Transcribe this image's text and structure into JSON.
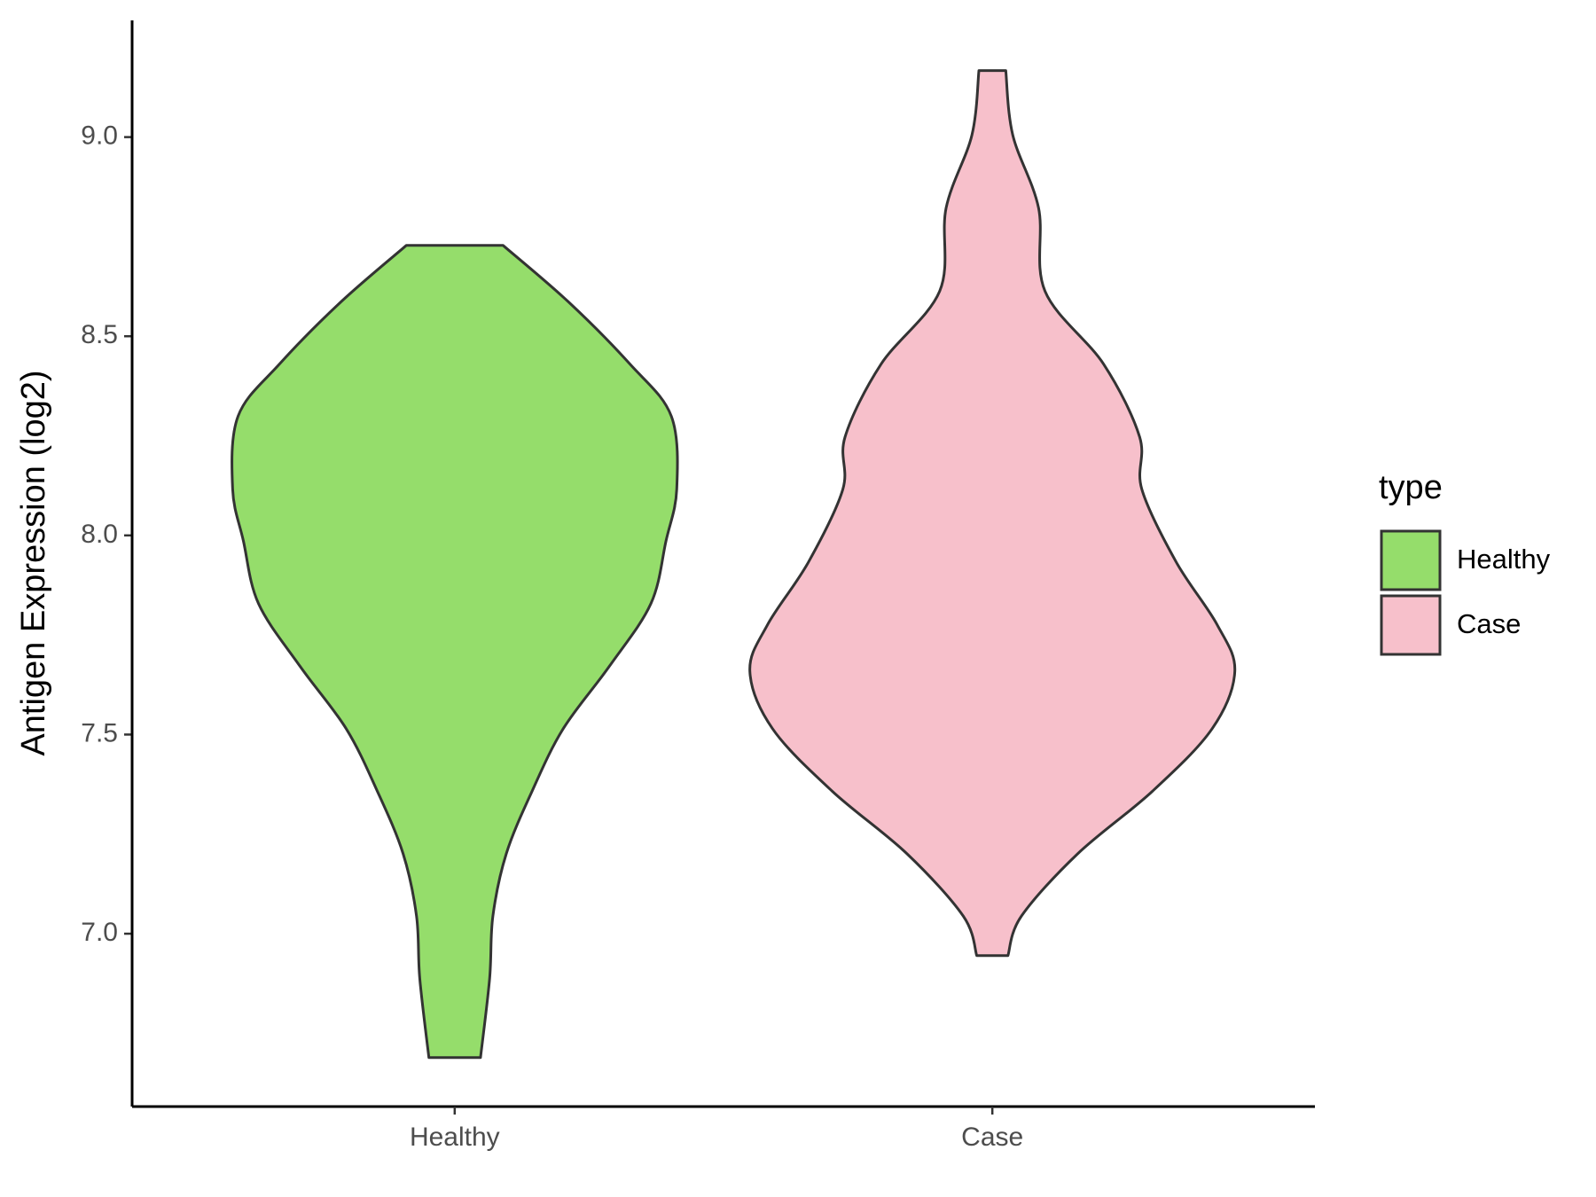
{
  "chart_data": {
    "type": "violin",
    "y_label": "Antigen Expression (log2)",
    "categories": [
      "Healthy",
      "Case"
    ],
    "legend_title": "type",
    "legend_position": "right",
    "ylim": [
      6.566,
      9.293
    ],
    "yticks": [
      {
        "value": 7,
        "label": "7.0"
      },
      {
        "value": 7.5,
        "label": "7.5"
      },
      {
        "value": 8,
        "label": "8.0"
      },
      {
        "value": 8.5,
        "label": "8.5"
      },
      {
        "value": 9,
        "label": "9.0"
      }
    ],
    "series": [
      {
        "name": "Healthy",
        "color": "#95dd6b",
        "y": [
          8.728,
          8.587,
          8.43,
          8.299,
          8.116,
          7.986,
          7.829,
          7.672,
          7.515,
          7.358,
          7.201,
          7.044,
          6.888,
          6.689
        ],
        "width": [
          0.09,
          0.211,
          0.326,
          0.403,
          0.413,
          0.393,
          0.365,
          0.288,
          0.202,
          0.144,
          0.096,
          0.071,
          0.065,
          0.048
        ]
      },
      {
        "name": "Case",
        "color": "#f7c0cb",
        "y": [
          9.167,
          9.005,
          8.822,
          8.613,
          8.43,
          8.247,
          8.116,
          7.933,
          7.776,
          7.659,
          7.515,
          7.358,
          7.201,
          7.044,
          6.945
        ],
        "width": [
          0.025,
          0.038,
          0.086,
          0.098,
          0.207,
          0.274,
          0.278,
          0.342,
          0.418,
          0.451,
          0.409,
          0.298,
          0.159,
          0.054,
          0.029
        ]
      }
    ]
  }
}
